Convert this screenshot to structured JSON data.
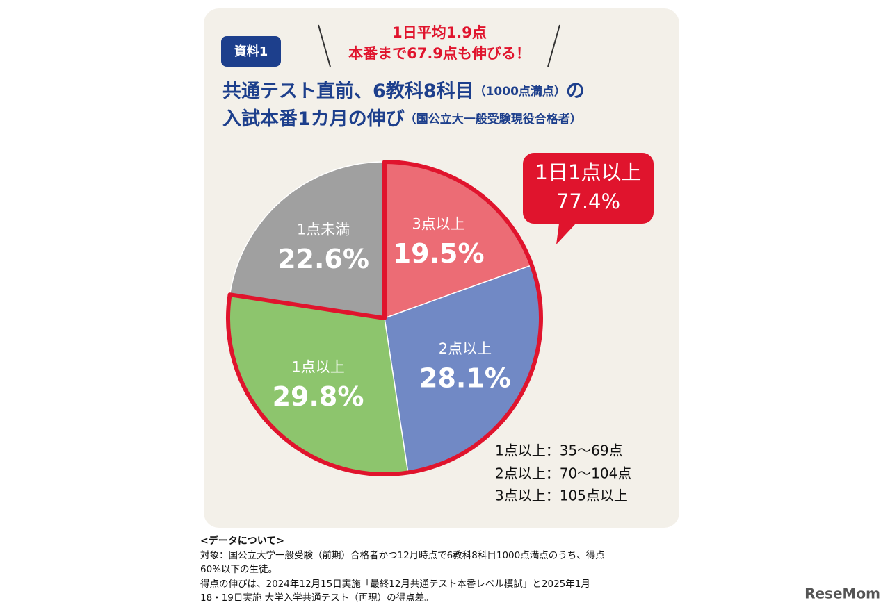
{
  "badge": "資料1",
  "callout": [
    "1日平均1.9点",
    "本番まで67.9点も伸びる！"
  ],
  "chart_data": {
    "type": "pie",
    "title": [
      {
        "main": "共通テスト直前、6教科8科目",
        "note": "（1000点満点）",
        "tail": "の"
      },
      {
        "main": "入試本番1カ月の伸び",
        "note": "（国公立大一般受験現役合格者）",
        "tail": ""
      }
    ],
    "categories": [
      "3点以上",
      "2点以上",
      "1点以上",
      "1点未満"
    ],
    "values": [
      19.5,
      28.1,
      29.8,
      22.6
    ],
    "value_labels": [
      "19.5%",
      "28.1%",
      "29.8%",
      "22.6%"
    ],
    "colors": [
      "#ec6c75",
      "#7189c5",
      "#8dc56d",
      "#a0a0a0"
    ],
    "annotation": [
      "1日1点以上",
      "77.4%"
    ],
    "notes": [
      "1点以上：35〜69点",
      "2点以上：70〜104点",
      "3点以上：105点以上"
    ]
  },
  "footnote": {
    "heading": "<データについて>",
    "lines": [
      "対象：国公立大学一般受験（前期）合格者かつ12月時点で6教科8科目1000点満点のうち、得点",
      "60%以下の生徒。",
      "得点の伸びは、2024年12月15日実施「最終12月共通テスト本番レベル模試」と2025年1月",
      "18・19日実施 大学入学共通テスト（再現）の得点差。"
    ]
  },
  "logo": "ReseMom"
}
